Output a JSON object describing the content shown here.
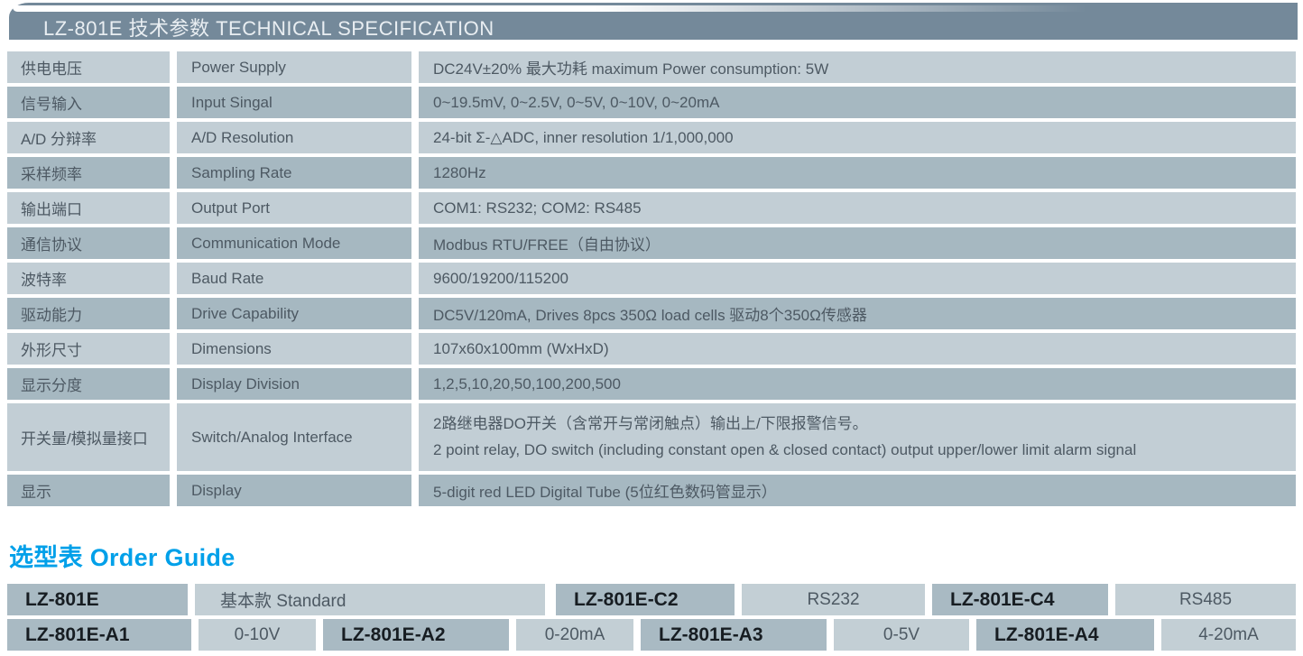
{
  "title_bar": {
    "text": "LZ-801E 技术参数 TECHNICAL SPECIFICATION"
  },
  "spec_table": {
    "rows": [
      {
        "label_cn": "供电电压",
        "label_en": "Power Supply",
        "value": "DC24V±20%  最大功耗 maximum Power consumption: 5W"
      },
      {
        "label_cn": "信号输入",
        "label_en": "Input Singal",
        "value": "0~19.5mV, 0~2.5V, 0~5V, 0~10V, 0~20mA"
      },
      {
        "label_cn": "A/D 分辩率",
        "label_en": "A/D Resolution",
        "value": "24-bit Σ-△ADC, inner resolution  1/1,000,000"
      },
      {
        "label_cn": "采样频率",
        "label_en": "Sampling Rate",
        "value": "1280Hz"
      },
      {
        "label_cn": "输出端口",
        "label_en": "Output Port",
        "value": "COM1: RS232; COM2: RS485"
      },
      {
        "label_cn": "通信协议",
        "label_en": "Communication Mode",
        "value": "Modbus RTU/FREE（自由协议）"
      },
      {
        "label_cn": "波特率",
        "label_en": "Baud Rate",
        "value": "9600/19200/115200"
      },
      {
        "label_cn": "驱动能力",
        "label_en": "Drive Capability",
        "value": "DC5V/120mA, Drives 8pcs 350Ω load cells 驱动8个350Ω传感器"
      },
      {
        "label_cn": "外形尺寸",
        "label_en": "Dimensions",
        "value": "107x60x100mm (WxHxD)"
      },
      {
        "label_cn": "显示分度",
        "label_en": "Display Division",
        "value": "1,2,5,10,20,50,100,200,500"
      },
      {
        "label_cn": "开关量/模拟量接口",
        "label_en": "Switch/Analog Interface",
        "value_line1": "2路继电器DO开关（含常开与常闭触点）输出上/下限报警信号。",
        "value_line2": "2 point relay, DO switch (including constant open & closed contact) output upper/lower limit alarm signal"
      },
      {
        "label_cn": "显示",
        "label_en": "Display",
        "value": "5-digit red LED Digital Tube (5位红色数码管显示）"
      }
    ]
  },
  "order_guide": {
    "heading": "选型表 Order Guide",
    "row1": [
      {
        "model": "LZ-801E",
        "desc": "基本款 Standard"
      },
      {
        "model": "LZ-801E-C2",
        "desc": "RS232"
      },
      {
        "model": "LZ-801E-C4",
        "desc": "RS485"
      }
    ],
    "row2": [
      {
        "model": "LZ-801E-A1",
        "desc": "0-10V"
      },
      {
        "model": "LZ-801E-A2",
        "desc": "0-20mA"
      },
      {
        "model": "LZ-801E-A3",
        "desc": "0-5V"
      },
      {
        "model": "LZ-801E-A4",
        "desc": "4-20mA"
      }
    ]
  },
  "colors": {
    "header_bg": "#74899a",
    "row_light": "#c2ced5",
    "row_dark": "#a6b8c1",
    "model_cell_bg": "#a9bac3",
    "desc_cell_bg": "#c3cfd5",
    "accent_cyan": "#00a0e9",
    "body_text": "#4d5963",
    "header_text": "#e9eef2"
  }
}
